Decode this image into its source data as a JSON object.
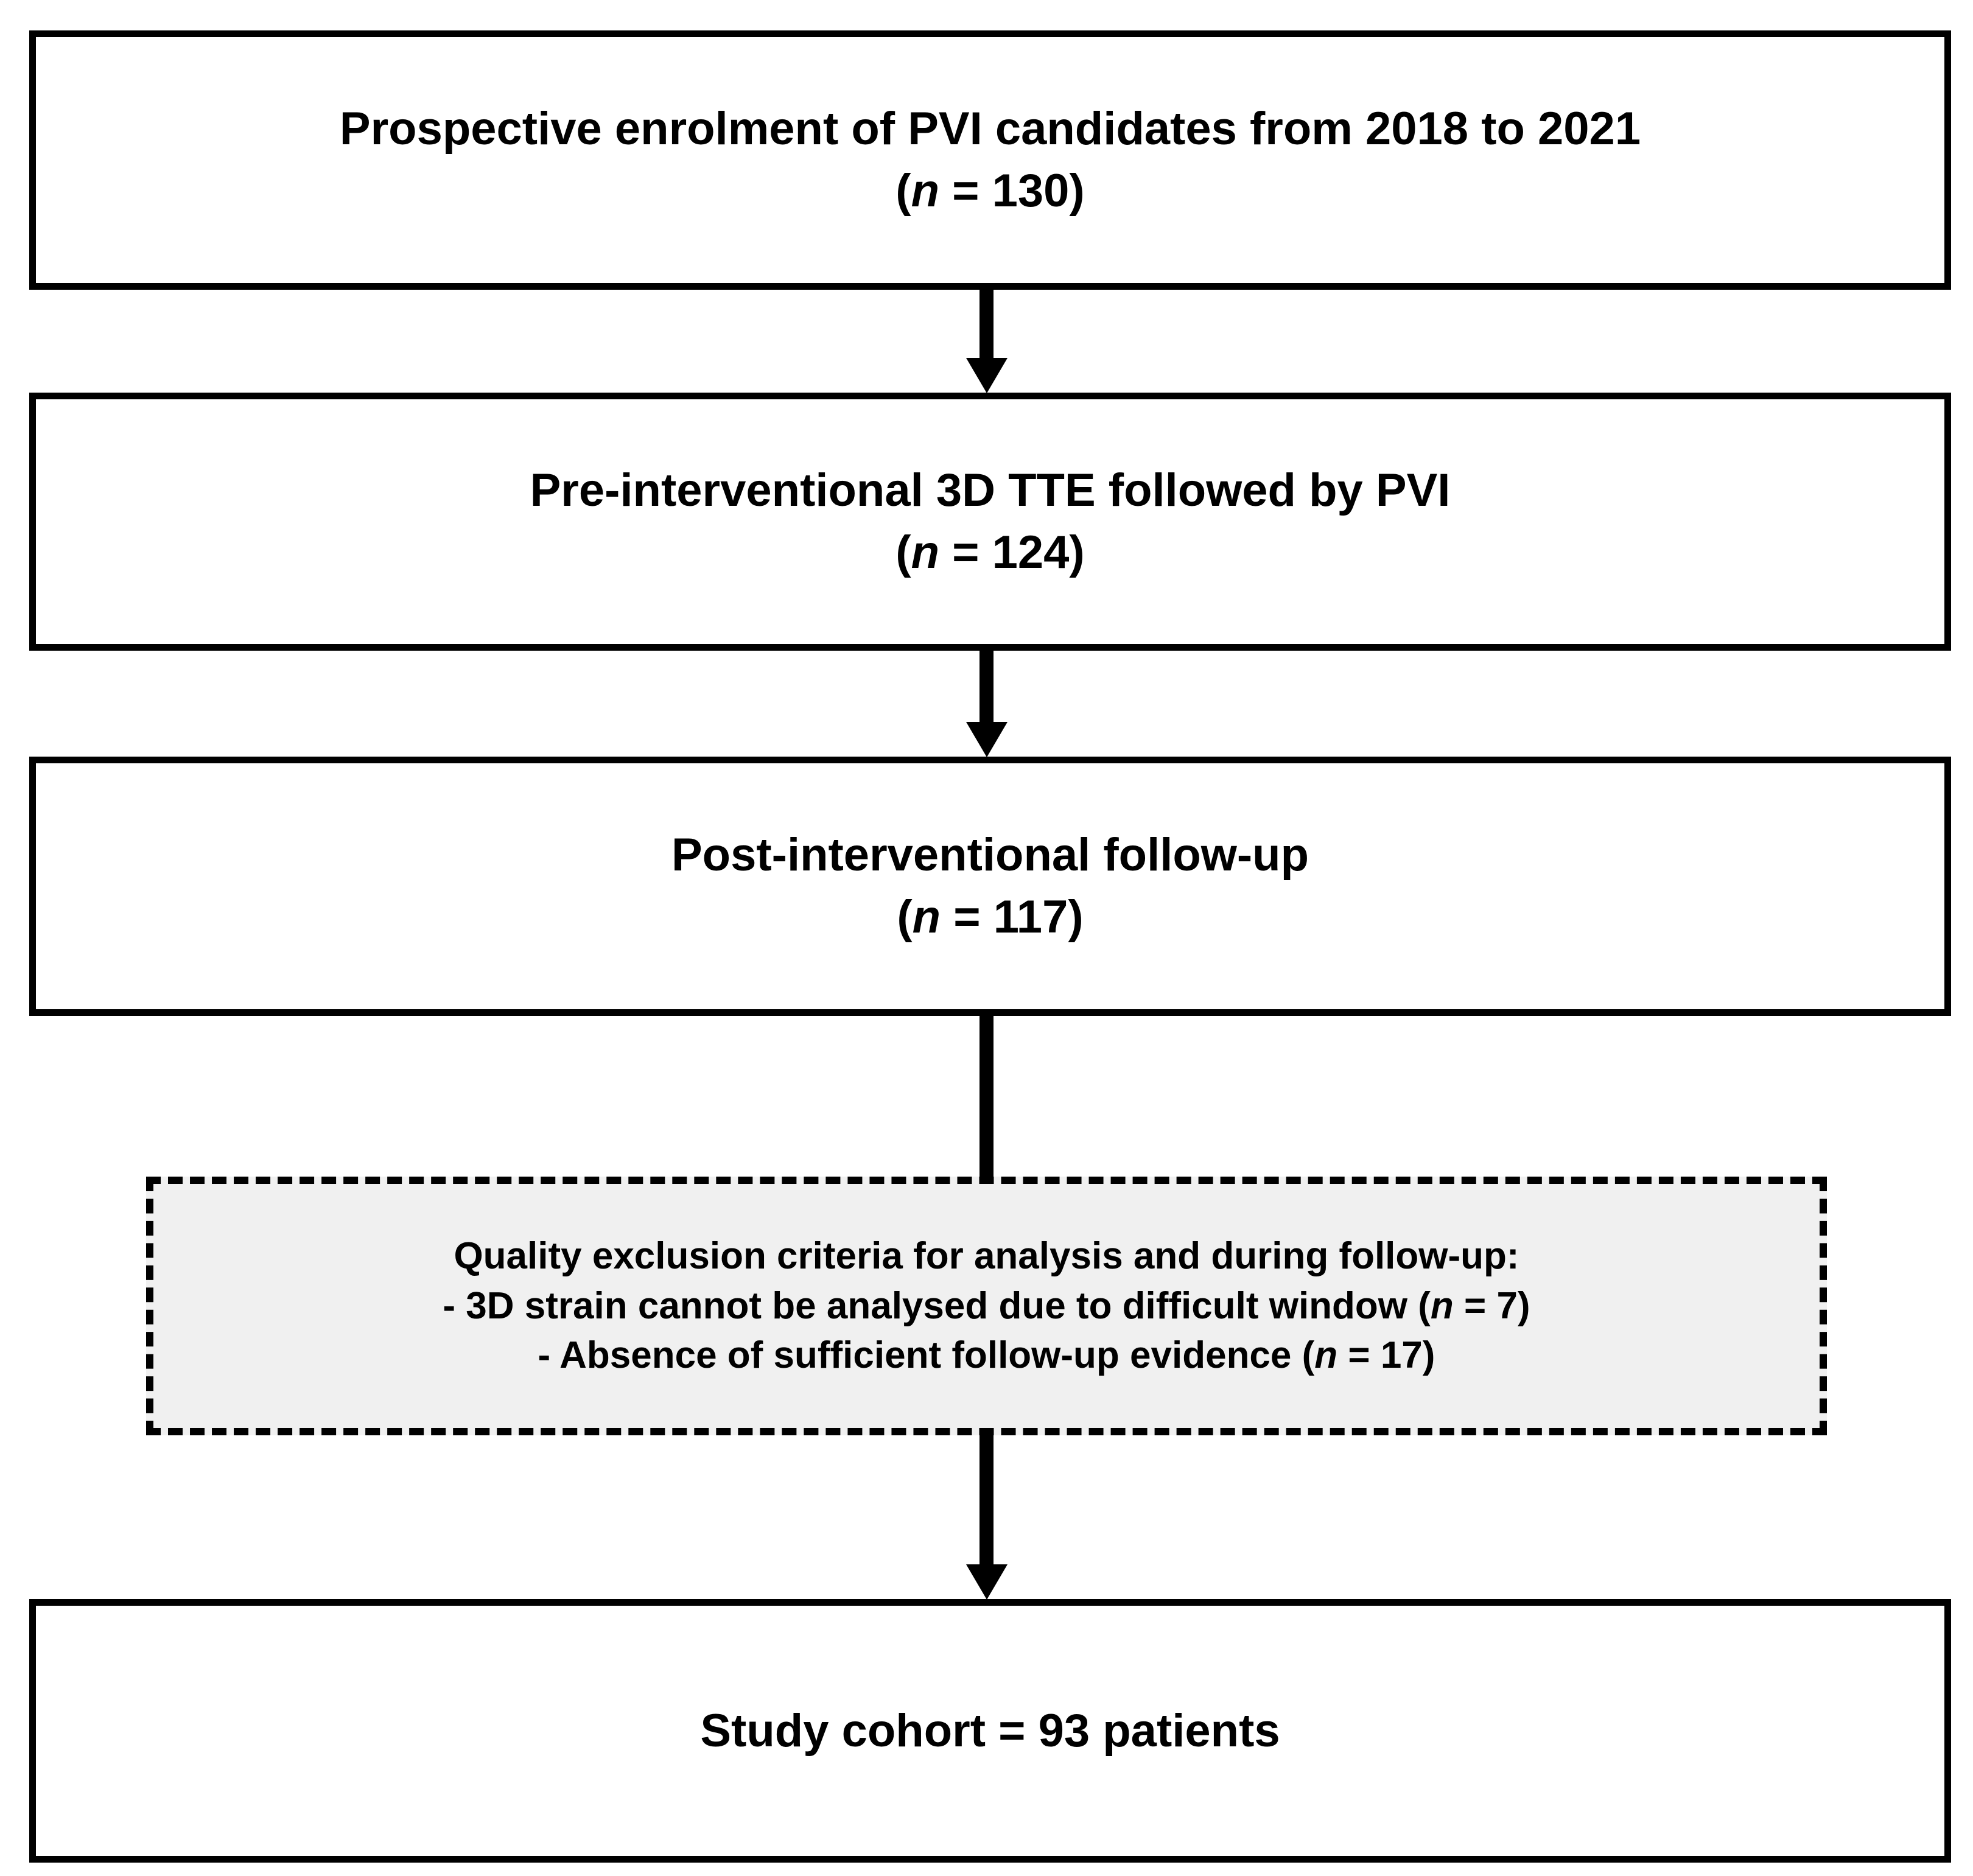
{
  "figure": {
    "type": "flowchart",
    "background": "#ffffff",
    "line_color": "#000000",
    "exclusion_fill": "#f0f0f0",
    "text_color": "#000000"
  },
  "boxes": {
    "enrolment": {
      "title": "Prospective enrolment of PVI candidates from 2018 to 2021",
      "count_open": "(",
      "count_var": "n",
      "count_rest": " = 130)"
    },
    "tte": {
      "title": "Pre-interventional 3D TTE followed by PVI",
      "count_open": "(",
      "count_var": "n",
      "count_rest": " = 124)"
    },
    "followup": {
      "title": "Post-interventional follow-up",
      "count_open": "(",
      "count_var": "n",
      "count_rest": " = 117)"
    },
    "exclusion": {
      "heading": "Quality exclusion criteria for analysis and during follow-up:",
      "item1_pre": "- 3D strain cannot be analysed due to difficult window (",
      "item1_var": "n",
      "item1_post": " = 7)",
      "item2_pre": "- Absence of sufficient follow-up evidence (",
      "item2_var": "n",
      "item2_post": " = 17)"
    },
    "cohort": {
      "title": "Study cohort = 93 patients"
    }
  }
}
